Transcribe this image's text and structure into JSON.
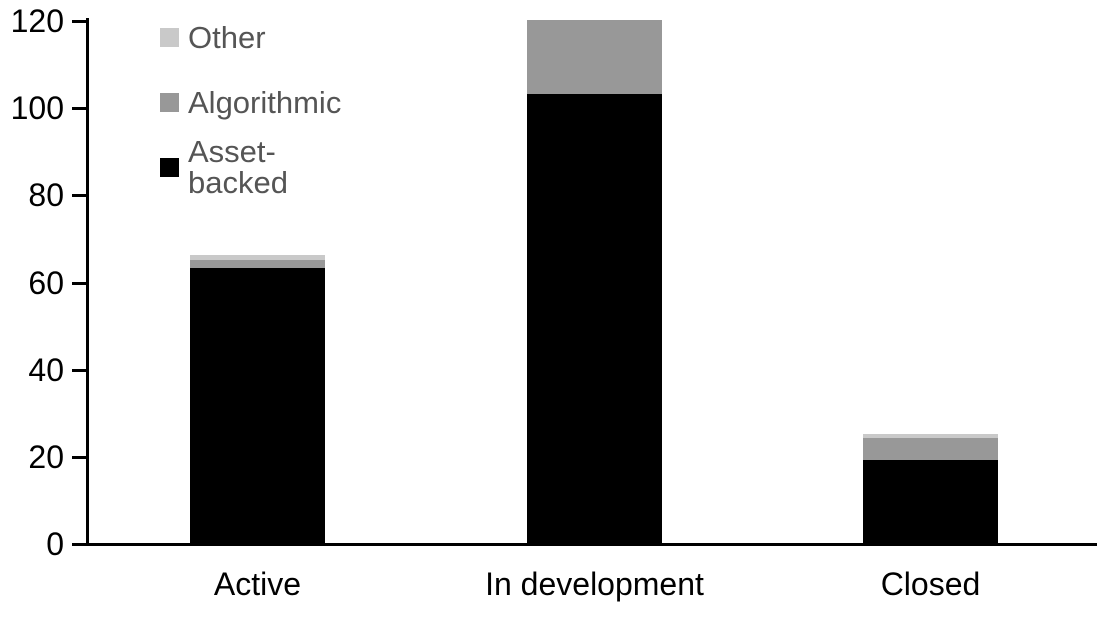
{
  "chart_data": {
    "type": "bar",
    "stacked": true,
    "title": "",
    "categories": [
      "Active",
      "In development",
      "Closed"
    ],
    "series": [
      {
        "name": "Asset-backed",
        "color": "#000000",
        "values": [
          63,
          103,
          19
        ]
      },
      {
        "name": "Algorithmic",
        "color": "#989898",
        "values": [
          2,
          17,
          5
        ]
      },
      {
        "name": "Other",
        "color": "#c9c9c9",
        "values": [
          1,
          0,
          1
        ]
      }
    ],
    "stack_totals": [
      66,
      120,
      25
    ],
    "xlabel": "",
    "ylabel": "",
    "ylim": [
      0,
      120
    ],
    "yticks": [
      "0",
      "20",
      "40",
      "60",
      "80",
      "100",
      "120"
    ],
    "grid": false,
    "legend_position": "top-left",
    "legend_order_top_to_bottom": [
      "Other",
      "Algorithmic",
      "Asset-backed"
    ]
  },
  "legend": {
    "items": [
      {
        "label": "Other",
        "color": "#c9c9c9"
      },
      {
        "label": "Algorithmic",
        "color": "#989898"
      },
      {
        "label": "Asset-backed",
        "color": "#000000"
      }
    ]
  },
  "colors": {
    "background": "#ffffff",
    "axis": "#000000",
    "tick_label": "#000000",
    "category_label": "#000000",
    "legend_text": "#555555"
  }
}
